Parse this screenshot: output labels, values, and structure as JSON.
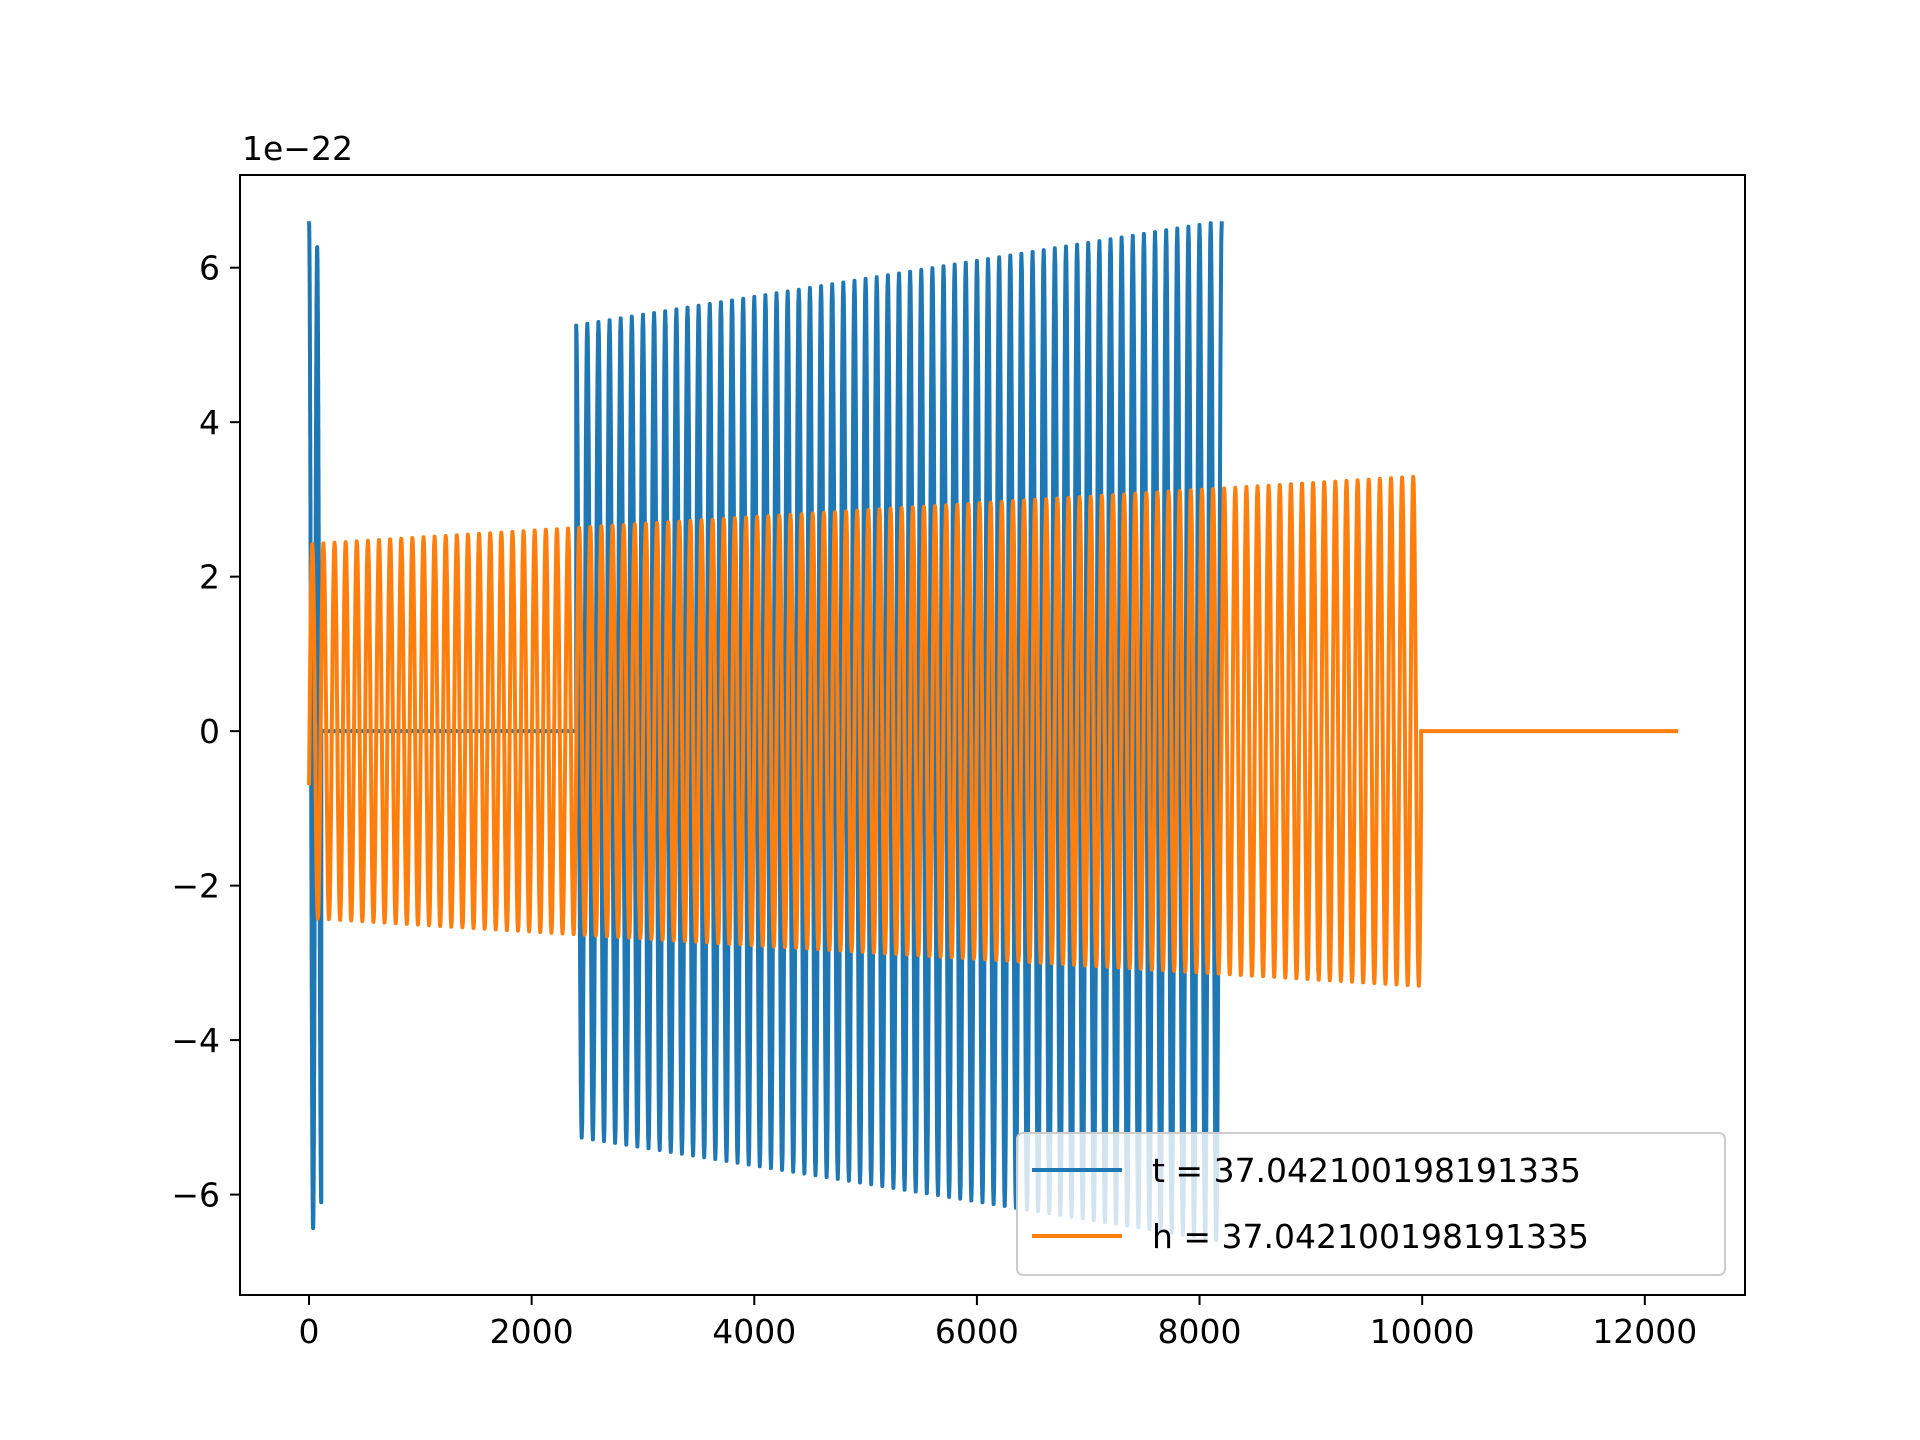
{
  "chart_data": {
    "type": "line",
    "title": "",
    "xlabel": "",
    "ylabel": "",
    "y_offset_label": "1e−22",
    "xlim": [
      -620,
      12900
    ],
    "ylim": [
      -7.3,
      7.2
    ],
    "x_ticks": [
      {
        "value": 0,
        "label": "0"
      },
      {
        "value": 2000,
        "label": "2000"
      },
      {
        "value": 4000,
        "label": "4000"
      },
      {
        "value": 6000,
        "label": "6000"
      },
      {
        "value": 8000,
        "label": "8000"
      },
      {
        "value": 10000,
        "label": "10000"
      },
      {
        "value": 12000,
        "label": "12000"
      }
    ],
    "y_ticks": [
      {
        "value": -6,
        "label": "−6"
      },
      {
        "value": -4,
        "label": "−4"
      },
      {
        "value": -2,
        "label": "−2"
      },
      {
        "value": 0,
        "label": "0"
      },
      {
        "value": 2,
        "label": "2"
      },
      {
        "value": 4,
        "label": "4"
      },
      {
        "value": 6,
        "label": "6"
      }
    ],
    "grid": false,
    "legend_position": "lower-right",
    "series": [
      {
        "name": "t = 37.042100198191335",
        "color": "#1f77b4",
        "segments": [
          {
            "x_start": 0,
            "x_end": 110,
            "amp_start": 6.6,
            "amp_end": 6.1,
            "cycles": 1.5
          },
          {
            "x_start": 110,
            "x_end": 2400,
            "flat": 0
          },
          {
            "x_start": 2400,
            "x_end": 8200,
            "amp_start": 5.25,
            "amp_end": 6.6,
            "cycles": 58
          }
        ]
      },
      {
        "name": "h = 37.042100198191335",
        "color": "#ff7f0e",
        "segments": [
          {
            "x_start": 0,
            "x_end": 9990,
            "amp_start": 2.42,
            "amp_end": 3.3,
            "cycles": 100,
            "start_value": -0.7
          },
          {
            "x_start": 9990,
            "x_end": 12300,
            "flat": 0
          }
        ]
      }
    ]
  }
}
